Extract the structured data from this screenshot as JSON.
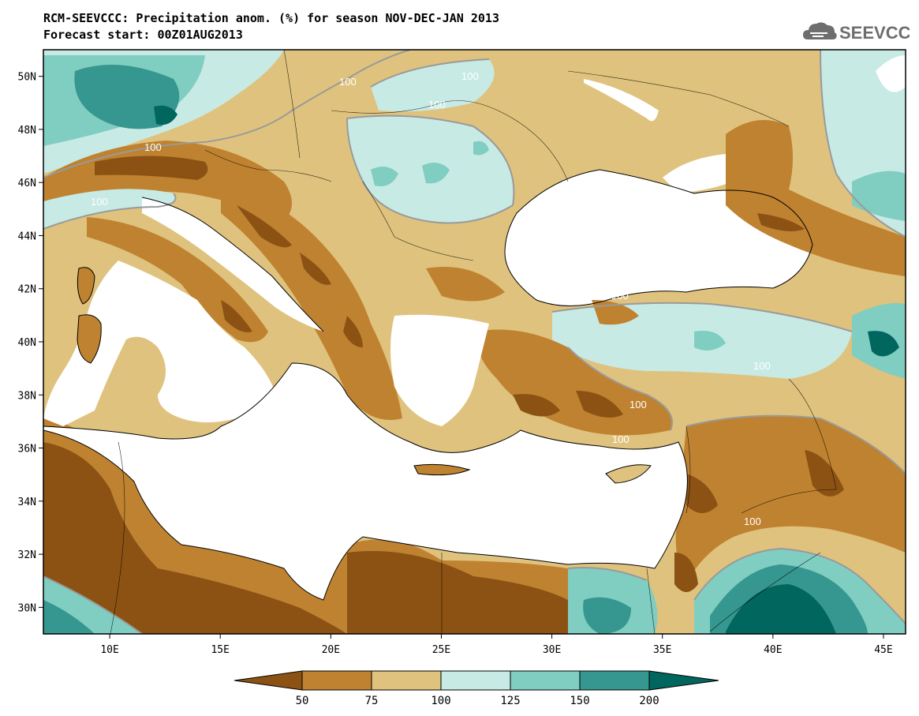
{
  "header": {
    "title": "RCM-SEEVCCC: Precipitation anom. (%) for season NOV-DEC-JAN 2013",
    "subtitle": "Forecast start: 00Z01AUG2013"
  },
  "logo": {
    "text": "SEEVCCC",
    "icon": "cloud-icon"
  },
  "map": {
    "lon_range": [
      7,
      46
    ],
    "lat_range": [
      29,
      51
    ],
    "lon_ticks": [
      "10E",
      "15E",
      "20E",
      "25E",
      "30E",
      "35E",
      "40E",
      "45E"
    ],
    "lat_ticks": [
      "50N",
      "48N",
      "46N",
      "44N",
      "42N",
      "40N",
      "38N",
      "36N",
      "34N",
      "32N",
      "30N"
    ],
    "contour_labels": [
      "100",
      "100",
      "100",
      "100",
      "100",
      "100",
      "100",
      "100",
      "100",
      "100",
      "100"
    ]
  },
  "legend": {
    "levels": [
      "50",
      "75",
      "100",
      "125",
      "150",
      "200"
    ],
    "colors": [
      "#8c5214",
      "#bf8230",
      "#dfc27d",
      "#c7eae5",
      "#80cdc1",
      "#35978f",
      "#01665e"
    ]
  }
}
